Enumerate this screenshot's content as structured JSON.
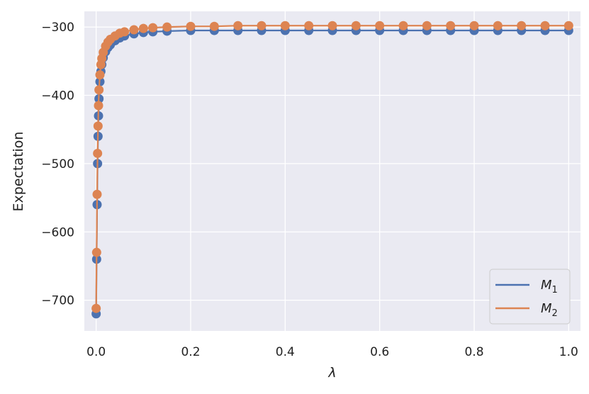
{
  "chart_data": {
    "type": "line",
    "title": "",
    "xlabel": "λ",
    "ylabel": "Expectation",
    "xlim": [
      -0.025,
      1.025
    ],
    "ylim": [
      -745,
      -277
    ],
    "xticks": [
      0.0,
      0.2,
      0.4,
      0.6,
      0.8,
      1.0
    ],
    "xtick_labels": [
      "0.0",
      "0.2",
      "0.4",
      "0.6",
      "0.8",
      "1.0"
    ],
    "yticks": [
      -700,
      -600,
      -500,
      -400,
      -300
    ],
    "ytick_labels": [
      "−700",
      "−600",
      "−500",
      "−400",
      "−300"
    ],
    "grid": true,
    "legend_position": "bottom-right",
    "markers": true,
    "series": [
      {
        "name": "M_1",
        "label_base": "M",
        "label_sub": "1",
        "color": "#4C72B0",
        "x": [
          0.0,
          0.001,
          0.002,
          0.003,
          0.004,
          0.005,
          0.006,
          0.008,
          0.01,
          0.012,
          0.015,
          0.02,
          0.025,
          0.03,
          0.04,
          0.05,
          0.06,
          0.08,
          0.1,
          0.12,
          0.15,
          0.2,
          0.25,
          0.3,
          0.35,
          0.4,
          0.45,
          0.5,
          0.55,
          0.6,
          0.65,
          0.7,
          0.75,
          0.8,
          0.85,
          0.9,
          0.95,
          1.0
        ],
        "y": [
          -720,
          -640,
          -560,
          -500,
          -460,
          -430,
          -405,
          -380,
          -365,
          -355,
          -345,
          -336,
          -330,
          -326,
          -320,
          -316,
          -313,
          -310,
          -308,
          -307,
          -306,
          -305,
          -305,
          -305,
          -305,
          -305,
          -305,
          -305,
          -305,
          -305,
          -305,
          -305,
          -305,
          -305,
          -305,
          -305,
          -305,
          -305
        ]
      },
      {
        "name": "M_2",
        "label_base": "M",
        "label_sub": "2",
        "color": "#DD8452",
        "x": [
          0.0,
          0.001,
          0.002,
          0.003,
          0.004,
          0.005,
          0.006,
          0.008,
          0.01,
          0.012,
          0.015,
          0.02,
          0.025,
          0.03,
          0.04,
          0.05,
          0.06,
          0.08,
          0.1,
          0.12,
          0.15,
          0.2,
          0.25,
          0.3,
          0.35,
          0.4,
          0.45,
          0.5,
          0.55,
          0.6,
          0.65,
          0.7,
          0.75,
          0.8,
          0.85,
          0.9,
          0.95,
          1.0
        ],
        "y": [
          -712,
          -630,
          -545,
          -485,
          -445,
          -415,
          -392,
          -370,
          -355,
          -346,
          -337,
          -328,
          -322,
          -318,
          -313,
          -309,
          -307,
          -304,
          -302,
          -301,
          -300,
          -299,
          -299,
          -298,
          -298,
          -298,
          -298,
          -298,
          -298,
          -298,
          -298,
          -298,
          -298,
          -298,
          -298,
          -298,
          -298,
          -298
        ]
      }
    ]
  }
}
